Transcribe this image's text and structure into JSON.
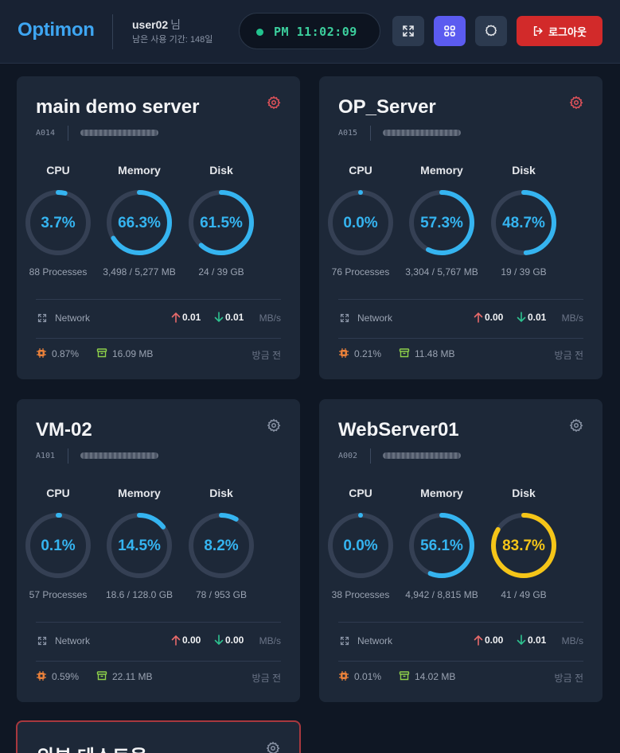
{
  "header": {
    "logo": "Optimon",
    "user_name": "user02",
    "user_suffix": "님",
    "user_period": "남은 사용 기간: 148일",
    "clock": "PM 11:02:09",
    "logout_label": "로그아웃"
  },
  "colors": {
    "ring_blue": "#35b4f0",
    "ring_yellow": "#f5c518",
    "ring_track": "#354054",
    "gear_alert": "#e0525a",
    "gear_normal": "#8a94a6"
  },
  "metric_labels": {
    "cpu": "CPU",
    "memory": "Memory",
    "disk": "Disk"
  },
  "servers": [
    {
      "name": "main demo server",
      "code": "A014",
      "gear_alert": true,
      "cpu": {
        "value": 3.7,
        "display": "3.7%",
        "sub": "88 Processes"
      },
      "memory": {
        "value": 66.3,
        "display": "66.3%",
        "sub": "3,498 / 5,277 MB"
      },
      "disk": {
        "value": 61.5,
        "display": "61.5%",
        "sub": "24 / 39 GB"
      },
      "network": {
        "label": "Network",
        "up": "0.01",
        "down": "0.01",
        "unit": "MB/s"
      },
      "footer": {
        "cpu": "0.87%",
        "memory": "16.09 MB",
        "time": "방금 전"
      }
    },
    {
      "name": "OP_Server",
      "code": "A015",
      "gear_alert": true,
      "cpu": {
        "value": 0.0,
        "display": "0.0%",
        "sub": "76 Processes"
      },
      "memory": {
        "value": 57.3,
        "display": "57.3%",
        "sub": "3,304 / 5,767 MB"
      },
      "disk": {
        "value": 48.7,
        "display": "48.7%",
        "sub": "19 / 39 GB"
      },
      "network": {
        "label": "Network",
        "up": "0.00",
        "down": "0.01",
        "unit": "MB/s"
      },
      "footer": {
        "cpu": "0.21%",
        "memory": "11.48 MB",
        "time": "방금 전"
      }
    },
    {
      "name": "VM-02",
      "code": "A101",
      "gear_alert": false,
      "cpu": {
        "value": 0.1,
        "display": "0.1%",
        "sub": "57 Processes"
      },
      "memory": {
        "value": 14.5,
        "display": "14.5%",
        "sub": "18.6 / 128.0 GB"
      },
      "disk": {
        "value": 8.2,
        "display": "8.2%",
        "sub": "78 / 953 GB"
      },
      "network": {
        "label": "Network",
        "up": "0.00",
        "down": "0.00",
        "unit": "MB/s"
      },
      "footer": {
        "cpu": "0.59%",
        "memory": "22.11 MB",
        "time": "방금 전"
      }
    },
    {
      "name": "WebServer01",
      "code": "A002",
      "gear_alert": false,
      "cpu": {
        "value": 0.0,
        "display": "0.0%",
        "sub": "38 Processes"
      },
      "memory": {
        "value": 56.1,
        "display": "56.1%",
        "sub": "4,942 / 8,815 MB"
      },
      "disk": {
        "value": 83.7,
        "display": "83.7%",
        "sub": "41 / 49 GB",
        "warn": true
      },
      "network": {
        "label": "Network",
        "up": "0.00",
        "down": "0.01",
        "unit": "MB/s"
      },
      "footer": {
        "cpu": "0.01%",
        "memory": "14.02 MB",
        "time": "방금 전"
      }
    }
  ],
  "partial_server": {
    "name": "외부 테스트용"
  }
}
